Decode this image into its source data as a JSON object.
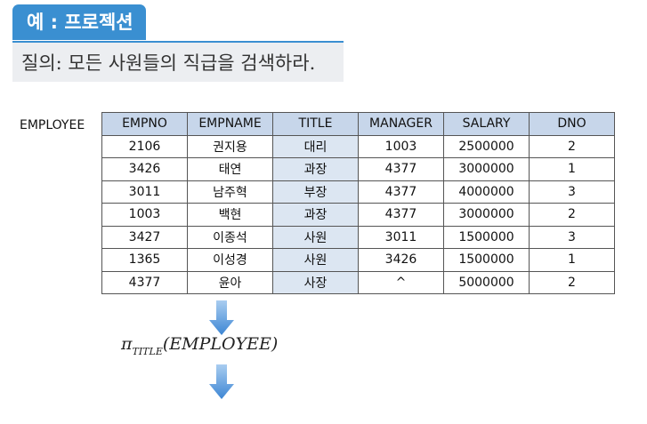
{
  "header": {
    "title": "예 : 프로젝션",
    "query": "질의: 모든 사원들의 직급을 검색하라."
  },
  "table": {
    "name": "EMPLOYEE",
    "columns": [
      "EMPNO",
      "EMPNAME",
      "TITLE",
      "MANAGER",
      "SALARY",
      "DNO"
    ],
    "rows": [
      [
        "2106",
        "권지용",
        "대리",
        "1003",
        "2500000",
        "2"
      ],
      [
        "3426",
        "태연",
        "과장",
        "4377",
        "3000000",
        "1"
      ],
      [
        "3011",
        "남주혁",
        "부장",
        "4377",
        "4000000",
        "3"
      ],
      [
        "1003",
        "백현",
        "과장",
        "4377",
        "3000000",
        "2"
      ],
      [
        "3427",
        "이종석",
        "사원",
        "3011",
        "1500000",
        "3"
      ],
      [
        "1365",
        "이성경",
        "사원",
        "3426",
        "1500000",
        "1"
      ],
      [
        "4377",
        "윤아",
        "사장",
        "^",
        "5000000",
        "2"
      ]
    ]
  },
  "formula": {
    "operator": "π",
    "subscript": "TITLE",
    "argument": "(EMPLOYEE)"
  },
  "colors": {
    "accent": "#3a8fd1",
    "header_fill": "#c7d6ea",
    "title_col_fill": "#dce6f2",
    "arrow": "#4a90d9"
  }
}
